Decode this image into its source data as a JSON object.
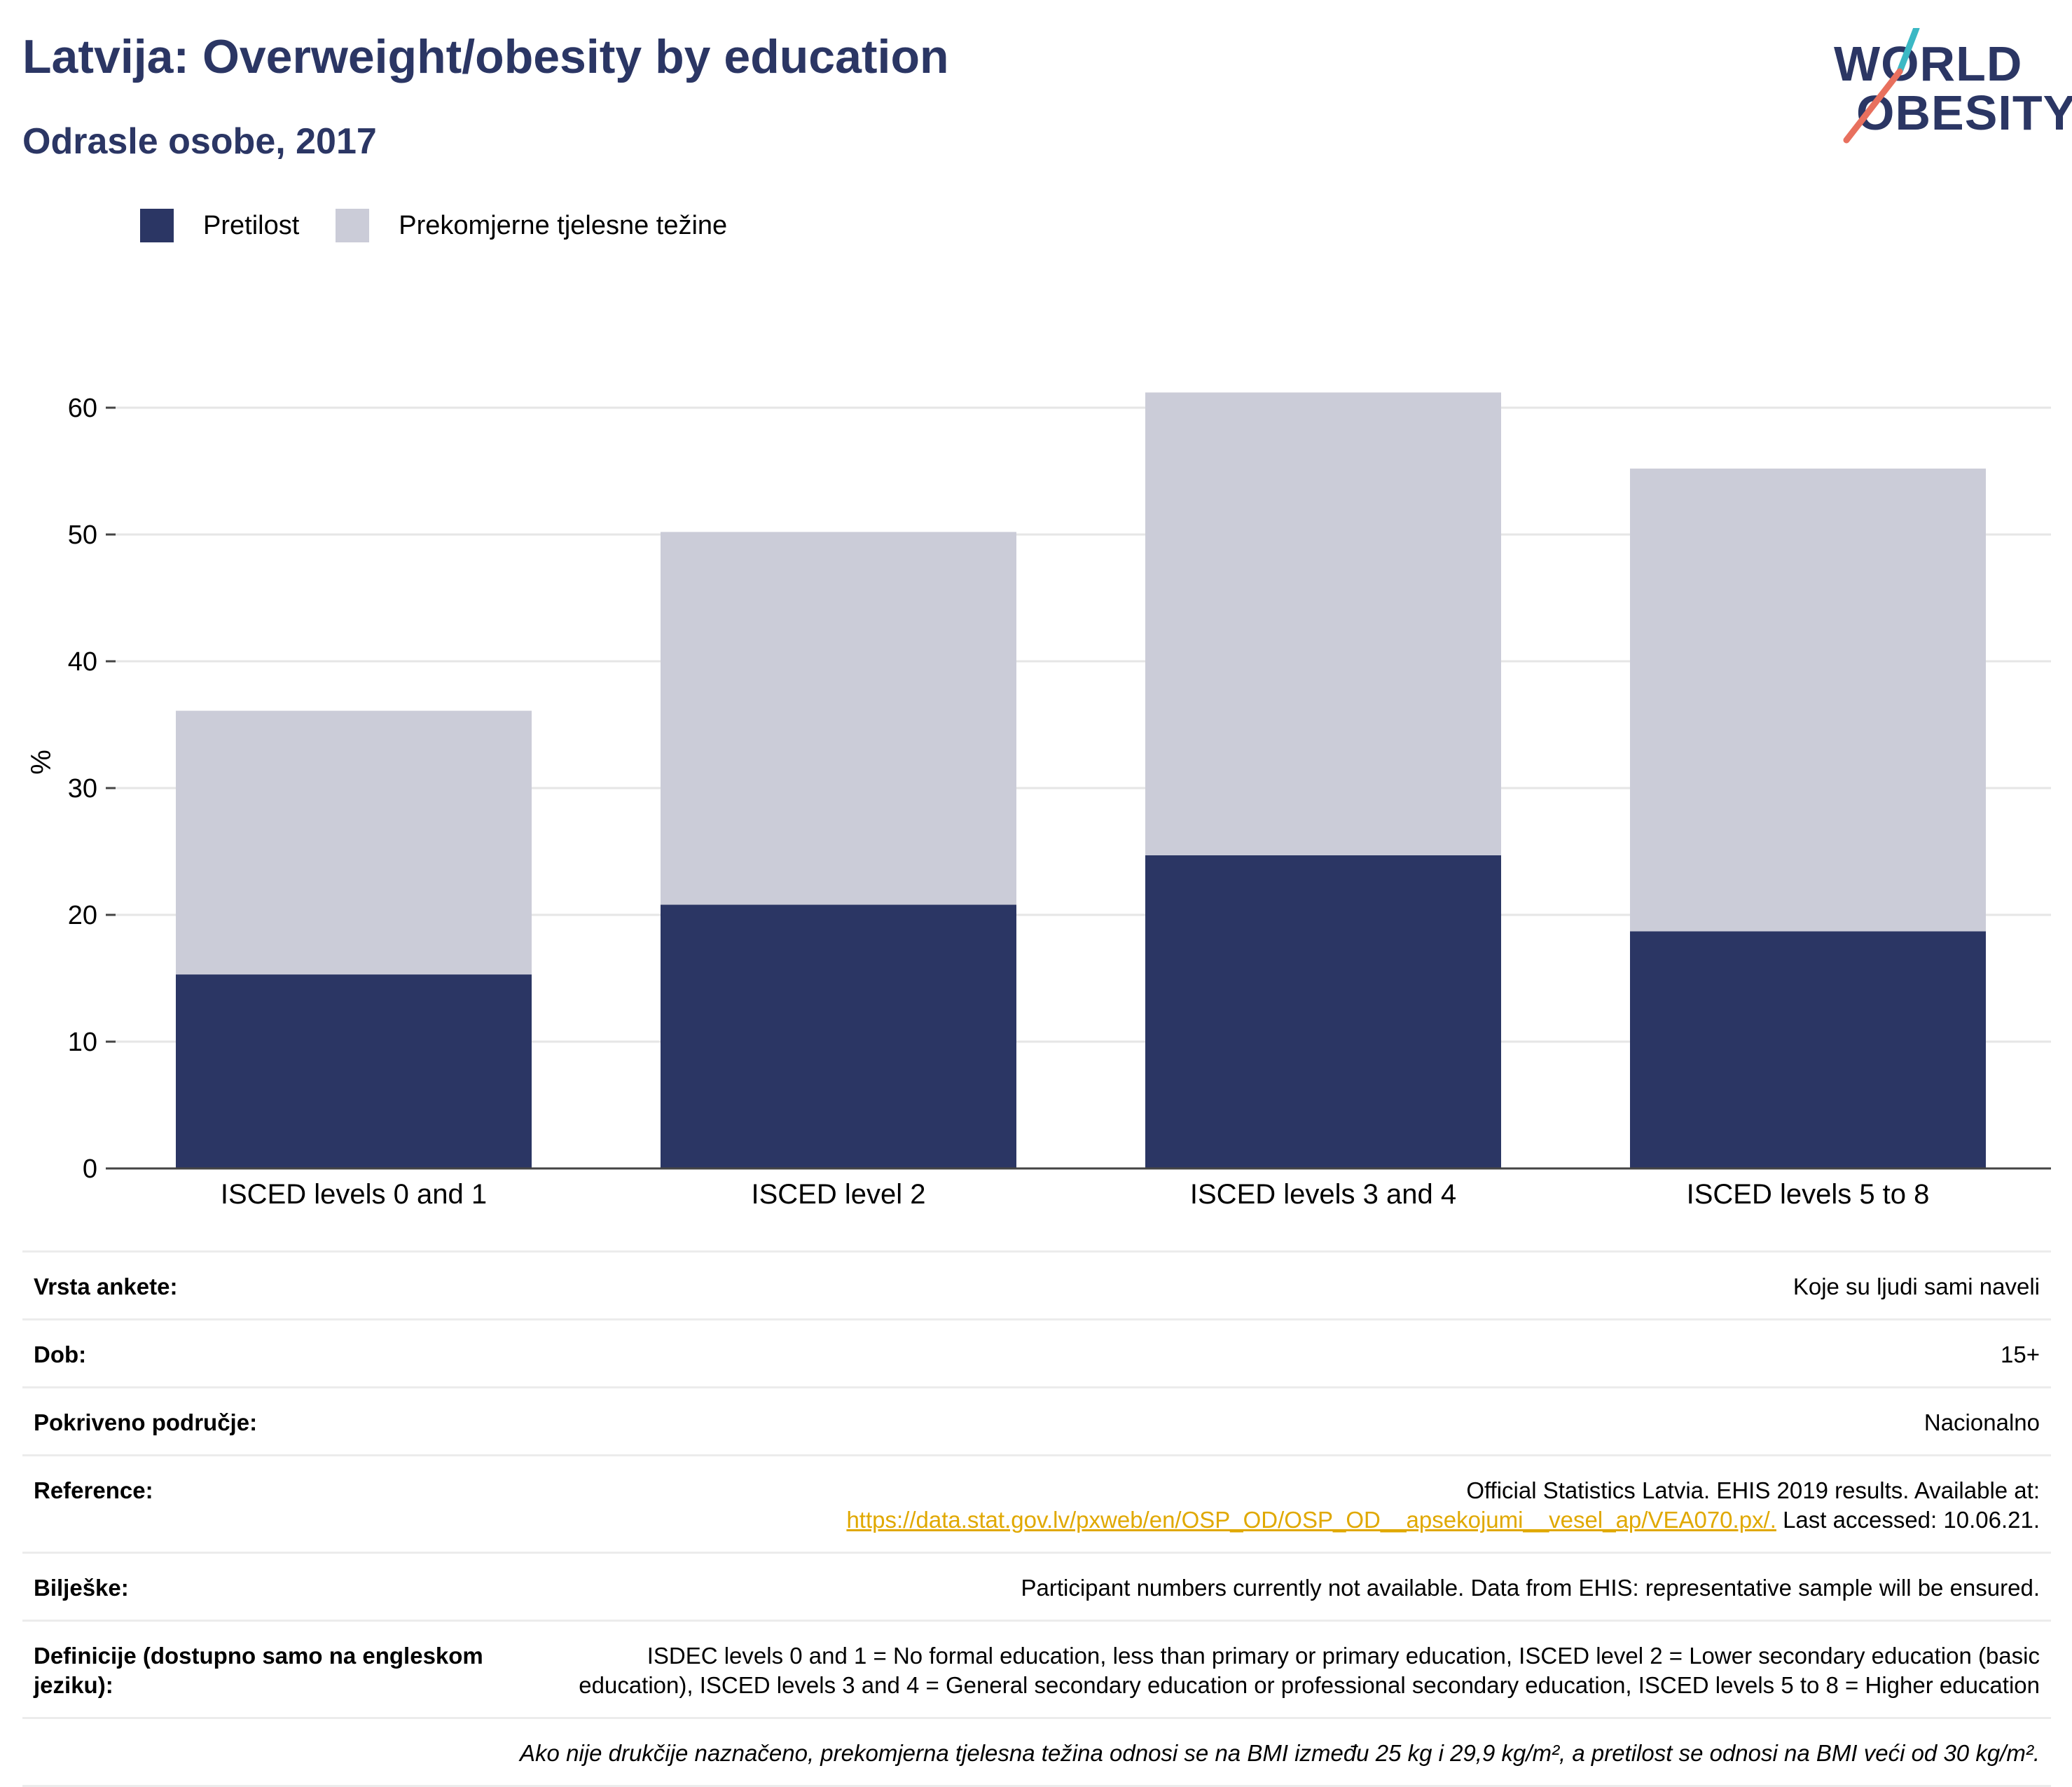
{
  "header": {
    "title": "Latvija: Overweight/obesity by education",
    "subtitle": "Odrasle osobe, 2017"
  },
  "logo": {
    "line1": "WORLD",
    "line2": "OBESITY",
    "colors": {
      "text": "#2b3664",
      "slash_top": "#3bb8c4",
      "slash_bottom": "#e8705e"
    }
  },
  "legend": [
    {
      "label": "Pretilost",
      "color": "#2b3664"
    },
    {
      "label": "Prekomjerne tjelesne težine",
      "color": "#cbccd8"
    }
  ],
  "chart_data": {
    "type": "bar",
    "stacked": true,
    "categories": [
      "ISCED levels 0 and 1",
      "ISCED level 2",
      "ISCED levels 3 and 4",
      "ISCED levels 5 to 8"
    ],
    "series": [
      {
        "name": "Pretilost",
        "values": [
          15.3,
          20.8,
          24.7,
          18.7
        ],
        "color": "#2b3664"
      },
      {
        "name": "Prekomjerne tjelesne težine",
        "values": [
          20.8,
          29.4,
          36.5,
          36.5
        ],
        "color": "#cbccd8"
      }
    ],
    "ylabel": "%",
    "ylim": [
      0,
      66
    ],
    "yticks": [
      0,
      10,
      20,
      30,
      40,
      50,
      60
    ],
    "grid": true,
    "legend_position": "top-left"
  },
  "meta": {
    "survey_label": "Vrsta ankete:",
    "survey_value": "Koje su ljudi sami naveli",
    "age_label": "Dob:",
    "age_value": "15+",
    "coverage_label": "Pokriveno područje:",
    "coverage_value": "Nacionalno",
    "reference_label": "Reference:",
    "reference_text": "Official Statistics Latvia. EHIS 2019 results. Available at:",
    "reference_link": "https://data.stat.gov.lv/pxweb/en/OSP_OD/OSP_OD__apsekojumi__vesel_ap/VEA070.px/.",
    "reference_accessed": " Last accessed: 10.06.21.",
    "notes_label": "Bilješke:",
    "notes_value": "Participant numbers currently not available. Data from EHIS: representative sample will be ensured.",
    "definitions_label": "Definicije (dostupno samo na engleskom jeziku):",
    "definitions_value": "ISDEC levels 0 and 1 = No formal education, less than primary or primary education, ISCED level 2 = Lower secondary education (basic education), ISCED levels 3 and 4 = General secondary education or professional secondary education, ISCED levels 5 to 8 = Higher education",
    "footnote": "Ako nije drukčije naznačeno, prekomjerna tjelesna težina odnosi se na BMI između 25 kg i 29,9 kg/m², a pretilost se odnosi na BMI veći od 30 kg/m²."
  }
}
